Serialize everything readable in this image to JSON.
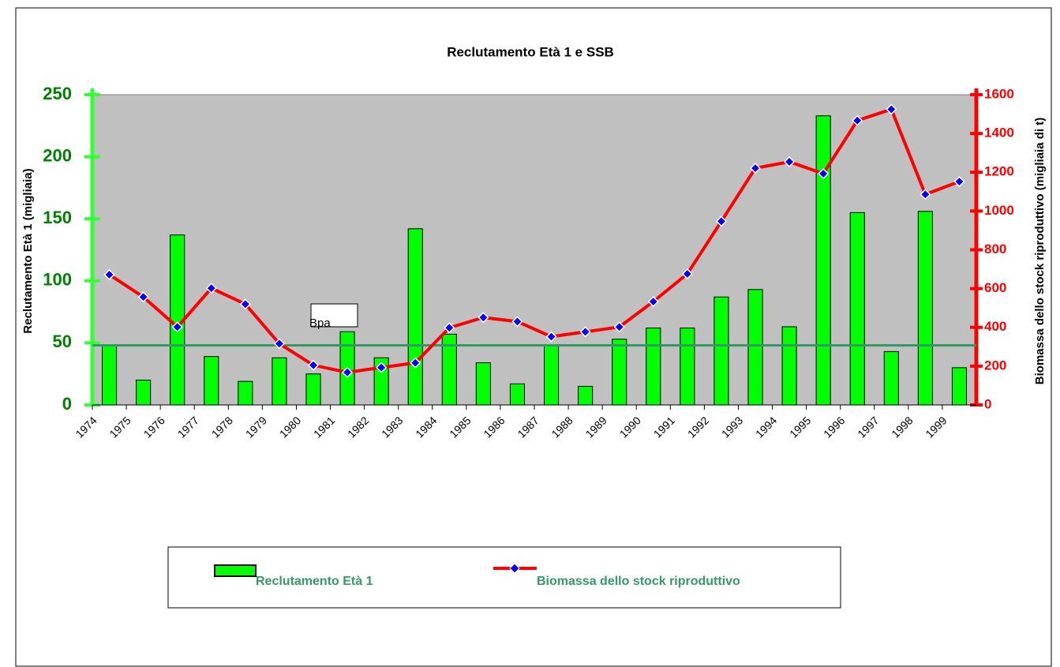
{
  "chart_data": {
    "type": "bar-line",
    "title": "Reclutamento Età 1 e SSB",
    "y_label": "Reclutamento Età 1 (migliaia)",
    "y2_label": "Biomassa dello stock riproduttivo (migliaia di t)",
    "categories": [
      "1974",
      "1975",
      "1976",
      "1977",
      "1978",
      "1979",
      "1980",
      "1981",
      "1982",
      "1983",
      "1984",
      "1985",
      "1986",
      "1987",
      "1988",
      "1989",
      "1990",
      "1991",
      "1992",
      "1993",
      "1994",
      "1995",
      "1996",
      "1997",
      "1998",
      "1999"
    ],
    "series": [
      {
        "name": "Reclutamento Età 1",
        "type": "bar",
        "color": "#00ff00",
        "values": [
          48,
          20,
          137,
          39,
          19,
          38,
          25,
          59,
          38,
          142,
          57,
          34,
          17,
          48,
          15,
          53,
          62,
          62,
          87,
          93,
          63,
          233,
          155,
          43,
          156,
          30
        ]
      },
      {
        "name": "Biomassa dello stock riproduttivo",
        "type": "line",
        "axis": "y2",
        "color": "#ff0000",
        "marker_color": "#0000ff",
        "values": [
          672,
          557,
          402,
          602,
          520,
          316,
          205,
          168,
          193,
          217,
          398,
          451,
          430,
          352,
          377,
          402,
          533,
          676,
          947,
          1221,
          1254,
          1193,
          1467,
          1525,
          1086,
          1152
        ]
      }
    ],
    "reference_line": {
      "label": "Bpa",
      "value": 48,
      "color": "#339966"
    },
    "ylim": [
      0,
      250
    ],
    "yticks": [
      0,
      50,
      100,
      150,
      200,
      250
    ],
    "y2lim": [
      0,
      1600
    ],
    "y2ticks": [
      0,
      200,
      400,
      600,
      800,
      1000,
      1200,
      1400,
      1600
    ]
  }
}
